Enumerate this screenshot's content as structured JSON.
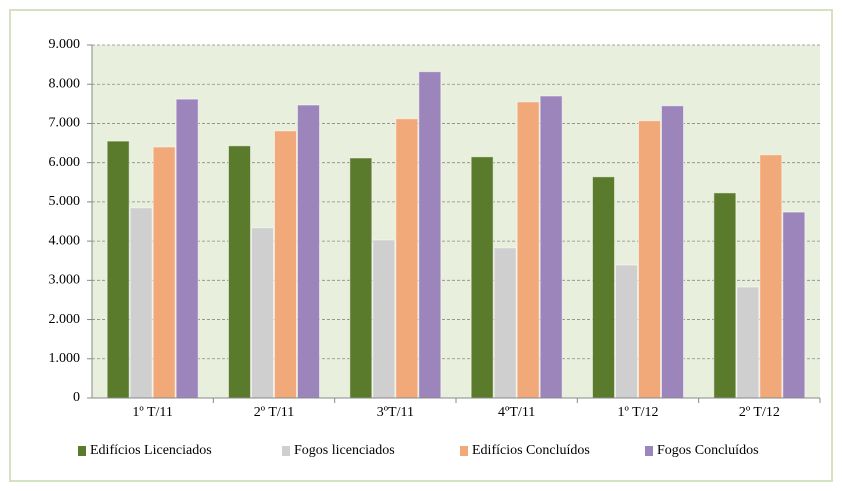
{
  "chart_data": {
    "type": "bar",
    "categories": [
      "1º T/11",
      "2º T/11",
      "3ºT/11",
      "4ºT/11",
      "1º T/12",
      "2º T/12"
    ],
    "series": [
      {
        "name": "Edifícios Licenciados",
        "color": "#5b7b2c",
        "values": [
          6550,
          6430,
          6120,
          6150,
          5640,
          5230
        ]
      },
      {
        "name": "Fogos licenciados",
        "color": "#cfcfcf",
        "values": [
          4850,
          4340,
          4030,
          3830,
          3390,
          2830
        ]
      },
      {
        "name": "Edifícios Concluídos",
        "color": "#f2a979",
        "values": [
          6400,
          6810,
          7120,
          7550,
          7070,
          6200
        ]
      },
      {
        "name": "Fogos Concluídos",
        "color": "#9b85bb",
        "values": [
          7620,
          7470,
          8320,
          7700,
          7450,
          4740
        ]
      }
    ],
    "ylim": [
      0,
      9000
    ],
    "yticks": [
      0,
      {
        "value": 1000,
        "label": "1.000"
      },
      {
        "value": 2000,
        "label": "2.000"
      },
      {
        "value": 3000,
        "label": "3.000"
      },
      {
        "value": 4000,
        "label": "4.000"
      },
      {
        "value": 5000,
        "label": "5.000"
      },
      {
        "value": 6000,
        "label": "6.000"
      },
      {
        "value": 7000,
        "label": "7.000"
      },
      {
        "value": 8000,
        "label": "8.000"
      },
      {
        "value": 9000,
        "label": "9.000"
      }
    ],
    "grid": true,
    "legend": "bottom"
  }
}
